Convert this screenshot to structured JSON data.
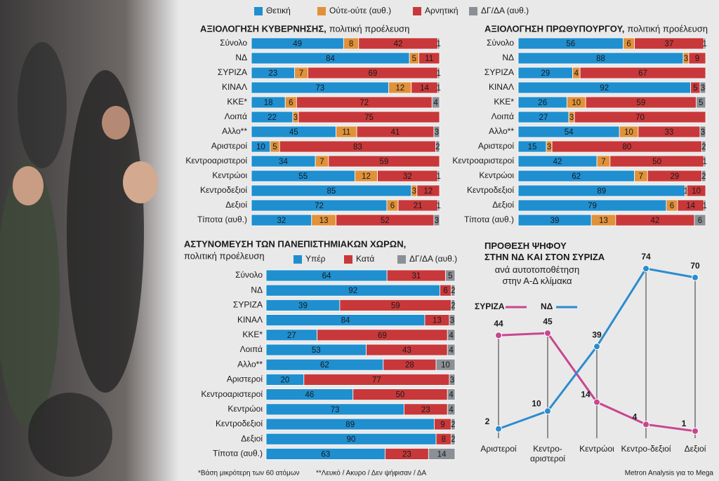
{
  "chart_data": [
    {
      "type": "stacked-bar",
      "title": "ΑΞΙΟΛΟΓΗΣΗ ΚΥΒΕΡΝΗΣΗΣ,",
      "subtitle": "πολιτική προέλευση",
      "categories": [
        "Σύνολο",
        "ΝΔ",
        "ΣΥΡΙΖΑ",
        "ΚΙΝΑΛ",
        "ΚΚΕ*",
        "Λοιπά",
        "Αλλο**",
        "Αριστεροί",
        "Κεντροαριστεροί",
        "Κεντρώοι",
        "Κεντροδεξιοί",
        "Δεξιοί",
        "Τίποτα (αυθ.)"
      ],
      "xlim": [
        0,
        100
      ],
      "series": [
        {
          "name": "Θετική",
          "color": "#1f8fd0",
          "values": [
            49,
            84,
            23,
            73,
            18,
            22,
            45,
            10,
            34,
            55,
            85,
            72,
            32
          ]
        },
        {
          "name": "Ούτε-ούτε (αυθ.)",
          "color": "#e0913a",
          "values": [
            8,
            5,
            7,
            12,
            6,
            3,
            11,
            5,
            7,
            12,
            3,
            6,
            13
          ]
        },
        {
          "name": "Αρνητική",
          "color": "#c8383a",
          "values": [
            42,
            11,
            69,
            14,
            72,
            75,
            41,
            83,
            59,
            32,
            12,
            21,
            52
          ]
        },
        {
          "name": "ΔΓ/ΔΑ (αυθ.)",
          "color": "#8a9095",
          "values": [
            1,
            null,
            1,
            1,
            4,
            null,
            3,
            2,
            null,
            1,
            null,
            1,
            3
          ]
        }
      ]
    },
    {
      "type": "stacked-bar",
      "title": "ΑΞΙΟΛΟΓΗΣΗ ΠΡΩΘΥΠΟΥΡΓΟΥ,",
      "subtitle": "πολιτική προέλευση",
      "categories": [
        "Σύνολο",
        "ΝΔ",
        "ΣΥΡΙΖΑ",
        "ΚΙΝΑΛ",
        "ΚΚΕ*",
        "Λοιπά",
        "Αλλο**",
        "Αριστεροί",
        "Κεντροαριστεροί",
        "Κεντρώοι",
        "Κεντροδεξιοί",
        "Δεξιοί",
        "Τίποτα (αυθ.)"
      ],
      "xlim": [
        0,
        100
      ],
      "series": [
        {
          "color": "#1f8fd0",
          "values": [
            56,
            88,
            29,
            92,
            26,
            27,
            54,
            15,
            42,
            62,
            89,
            79,
            39
          ]
        },
        {
          "color": "#e0913a",
          "values": [
            6,
            3,
            4,
            null,
            10,
            3,
            10,
            3,
            7,
            7,
            1,
            6,
            13
          ]
        },
        {
          "color": "#c8383a",
          "values": [
            37,
            9,
            67,
            5,
            59,
            70,
            33,
            80,
            50,
            29,
            10,
            14,
            42
          ]
        },
        {
          "color": "#8a9095",
          "values": [
            1,
            null,
            null,
            3,
            5,
            null,
            3,
            2,
            1,
            2,
            null,
            1,
            6
          ]
        }
      ]
    },
    {
      "type": "stacked-bar",
      "title": "ΑΣΤΥΝΟΜΕΥΣΗ ΤΩΝ ΠΑΝΕΠΙΣΤΗΜΙΑΚΩΝ ΧΩΡΩΝ,",
      "subtitle": "πολιτική προέλευση",
      "categories": [
        "Σύνολο",
        "ΝΔ",
        "ΣΥΡΙΖΑ",
        "ΚΙΝΑΛ",
        "ΚΚΕ*",
        "Λοιπά",
        "Αλλο**",
        "Αριστεροί",
        "Κεντροαριστεροί",
        "Κεντρώοι",
        "Κεντροδεξιοί",
        "Δεξιοί",
        "Τίποτα (αυθ.)"
      ],
      "xlim": [
        0,
        100
      ],
      "series": [
        {
          "name": "Υπέρ",
          "color": "#1f8fd0",
          "values": [
            64,
            92,
            39,
            84,
            27,
            53,
            62,
            20,
            46,
            73,
            89,
            90,
            63
          ]
        },
        {
          "name": "Κατά",
          "color": "#c8383a",
          "values": [
            31,
            6,
            59,
            13,
            69,
            43,
            28,
            77,
            50,
            23,
            9,
            8,
            23
          ]
        },
        {
          "name": "ΔΓ/ΔΑ (αυθ.)",
          "color": "#8a9095",
          "values": [
            5,
            2,
            2,
            3,
            4,
            4,
            10,
            3,
            4,
            4,
            2,
            2,
            14
          ]
        }
      ]
    },
    {
      "type": "line",
      "title": "ΠΡΟΘΕΣΗ ΨΗΦΟΥ\nΣΤΗΝ ΝΔ ΚΑΙ ΣΤΟΝ ΣΥΡΙΖΑ",
      "subtitle": "ανά αυτοτοποθέτηση\nστην Α-Δ κλίμακα",
      "categories": [
        "Αριστεροί",
        "Κεντρο-αριστεροί",
        "Κεντρώοι",
        "Κεντρο-δεξιοί",
        "Δεξιοί"
      ],
      "ylim": [
        0,
        80
      ],
      "series": [
        {
          "name": "ΣΥΡΙΖΑ",
          "color": "#c8468f",
          "values": [
            44,
            45,
            14,
            4,
            1
          ]
        },
        {
          "name": "ΝΔ",
          "color": "#2a8ccf",
          "values": [
            2,
            10,
            39,
            74,
            70
          ]
        }
      ]
    }
  ],
  "footnotes": [
    "*Βάση μικρότερη των 60 ατόμων",
    "**Λευκό / Ακυρο / Δεν ψήφισαν / ΔΑ"
  ],
  "source": "Metron Analysis για το Mega"
}
